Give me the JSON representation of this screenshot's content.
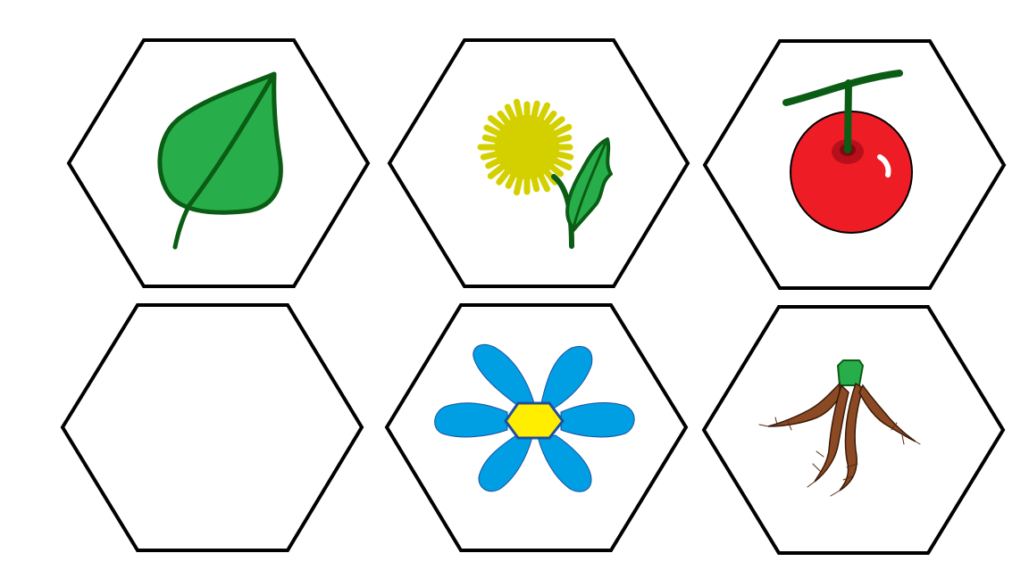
{
  "tiles": [
    {
      "row": 1,
      "col": 1,
      "picture": "leaf-icon",
      "empty": false
    },
    {
      "row": 1,
      "col": 2,
      "picture": "dandelion-icon",
      "empty": false
    },
    {
      "row": 1,
      "col": 3,
      "picture": "cherry-icon",
      "empty": false
    },
    {
      "row": 2,
      "col": 1,
      "picture": "",
      "empty": true
    },
    {
      "row": 2,
      "col": 2,
      "picture": "flower-icon",
      "empty": false
    },
    {
      "row": 2,
      "col": 3,
      "picture": "root-icon",
      "empty": false
    }
  ],
  "colors": {
    "outline": "#000000",
    "background": "#ffffff",
    "leaf_fill": "#27ae4a",
    "leaf_stroke": "#0b5c14",
    "dandelion": "#d4d000",
    "stem": "#0b5c14",
    "cherry": "#ee1c25",
    "petal": "#009fe3",
    "flower_center": "#ffee00",
    "root": "#8b4a24"
  }
}
